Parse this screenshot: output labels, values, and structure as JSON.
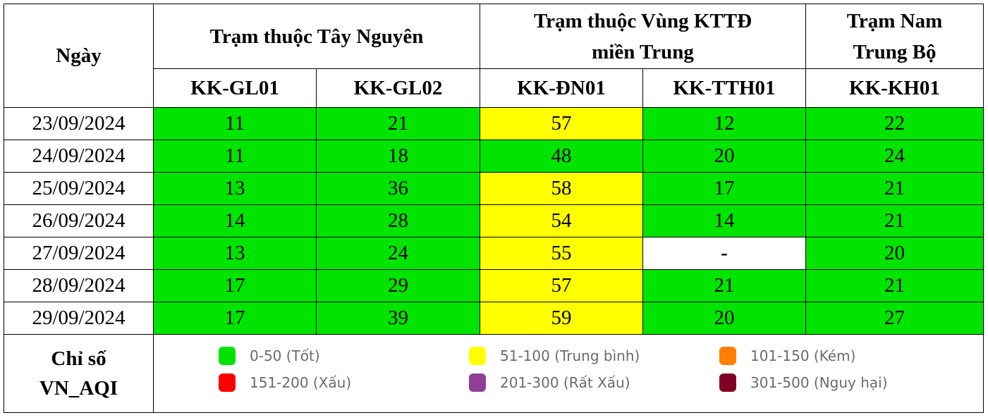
{
  "table": {
    "date_header": "Ngày",
    "groups": [
      {
        "label": "Trạm thuộc Tây Nguyên",
        "span": 2
      },
      {
        "label_line1": "Trạm thuộc Vùng KTTĐ",
        "label_line2": "miền Trung",
        "span": 2
      },
      {
        "label_line1": "Trạm Nam",
        "label_line2": "Trung Bộ",
        "span": 1
      }
    ],
    "stations": [
      "KK-GL01",
      "KK-GL02",
      "KK-ĐN01",
      "KK-TTH01",
      "KK-KH01"
    ],
    "rows": [
      {
        "date": "23/09/2024",
        "values": [
          "11",
          "21",
          "57",
          "12",
          "22"
        ],
        "levels": [
          "good",
          "good",
          "moderate",
          "good",
          "good"
        ]
      },
      {
        "date": "24/09/2024",
        "values": [
          "11",
          "18",
          "48",
          "20",
          "24"
        ],
        "levels": [
          "good",
          "good",
          "good",
          "good",
          "good"
        ]
      },
      {
        "date": "25/09/2024",
        "values": [
          "13",
          "36",
          "58",
          "17",
          "21"
        ],
        "levels": [
          "good",
          "good",
          "moderate",
          "good",
          "good"
        ]
      },
      {
        "date": "26/09/2024",
        "values": [
          "14",
          "28",
          "54",
          "14",
          "21"
        ],
        "levels": [
          "good",
          "good",
          "moderate",
          "good",
          "good"
        ]
      },
      {
        "date": "27/09/2024",
        "values": [
          "13",
          "24",
          "55",
          "-",
          "20"
        ],
        "levels": [
          "good",
          "good",
          "moderate",
          "nodata",
          "good"
        ]
      },
      {
        "date": "28/09/2024",
        "values": [
          "17",
          "29",
          "57",
          "21",
          "21"
        ],
        "levels": [
          "good",
          "good",
          "moderate",
          "good",
          "good"
        ]
      },
      {
        "date": "29/09/2024",
        "values": [
          "17",
          "39",
          "59",
          "20",
          "27"
        ],
        "levels": [
          "good",
          "good",
          "moderate",
          "good",
          "good"
        ]
      }
    ]
  },
  "legend": {
    "label_line1": "Chỉ số",
    "label_line2": "VN_AQI",
    "items": [
      {
        "label": "0-50 (Tốt)",
        "color": "#00e400"
      },
      {
        "label": "51-100 (Trung bình)",
        "color": "#ffff00"
      },
      {
        "label": "101-150 (Kém)",
        "color": "#ff7e00"
      },
      {
        "label": "151-200 (Xấu)",
        "color": "#ff0000"
      },
      {
        "label": "201-300 (Rất Xấu)",
        "color": "#8f3f97"
      },
      {
        "label": "301-500 (Nguy hại)",
        "color": "#7e0023"
      }
    ]
  },
  "colors": {
    "good": "#00e400",
    "moderate": "#ffff00",
    "nodata": "#ffffff"
  }
}
